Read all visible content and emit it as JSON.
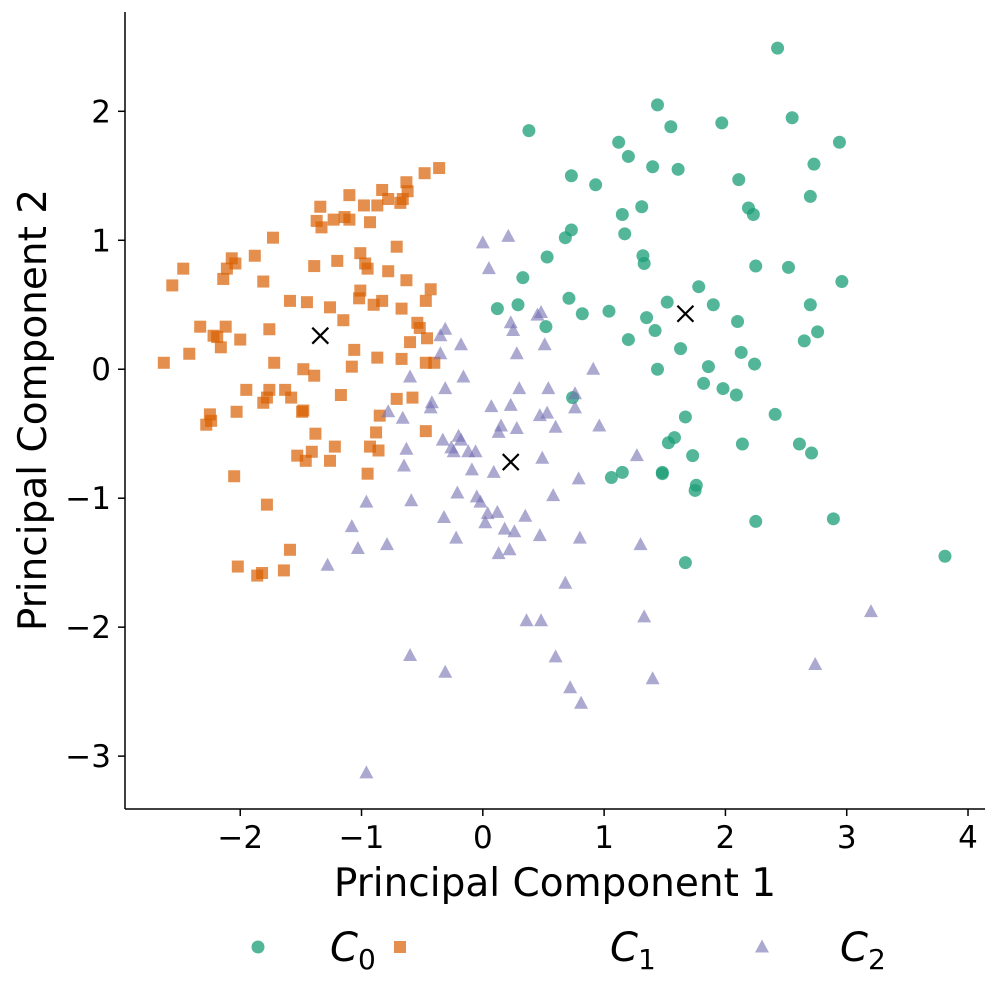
{
  "chart_data": {
    "type": "scatter",
    "title": "",
    "xlabel": "Principal Component 1",
    "ylabel": "Principal Component 2",
    "xlim": [
      -2.95,
      4.14
    ],
    "ylim": [
      -3.41,
      2.77
    ],
    "xticks": [
      -2,
      -1,
      0,
      1,
      2,
      3,
      4
    ],
    "xtick_labels": [
      "−2",
      "−1",
      "0",
      "1",
      "2",
      "3",
      "4"
    ],
    "yticks": [
      -3,
      -2,
      -1,
      0,
      1,
      2
    ],
    "ytick_labels": [
      "−3",
      "−2",
      "−1",
      "0",
      "1",
      "2"
    ],
    "grid": false,
    "legend_placement": "bottom",
    "series": [
      {
        "name": "C",
        "sub": "0",
        "marker": "circle",
        "color": "#1b9e77",
        "points": [
          [
            2.43,
            2.49
          ],
          [
            1.44,
            2.05
          ],
          [
            1.97,
            1.91
          ],
          [
            0.38,
            1.85
          ],
          [
            1.55,
            1.88
          ],
          [
            2.55,
            1.95
          ],
          [
            2.94,
            1.76
          ],
          [
            1.12,
            1.76
          ],
          [
            1.2,
            1.65
          ],
          [
            1.4,
            1.57
          ],
          [
            1.61,
            1.55
          ],
          [
            2.73,
            1.59
          ],
          [
            0.93,
            1.43
          ],
          [
            2.11,
            1.47
          ],
          [
            0.73,
            1.5
          ],
          [
            1.15,
            1.2
          ],
          [
            1.31,
            1.26
          ],
          [
            2.19,
            1.25
          ],
          [
            2.23,
            1.2
          ],
          [
            2.7,
            1.34
          ],
          [
            1.17,
            1.05
          ],
          [
            0.68,
            1.02
          ],
          [
            0.73,
            1.08
          ],
          [
            1.32,
            0.88
          ],
          [
            1.33,
            0.82
          ],
          [
            0.33,
            0.71
          ],
          [
            0.53,
            0.87
          ],
          [
            2.25,
            0.8
          ],
          [
            2.52,
            0.79
          ],
          [
            2.96,
            0.68
          ],
          [
            1.78,
            0.64
          ],
          [
            0.29,
            0.5
          ],
          [
            0.12,
            0.47
          ],
          [
            0.71,
            0.55
          ],
          [
            0.82,
            0.43
          ],
          [
            1.04,
            0.45
          ],
          [
            1.52,
            0.52
          ],
          [
            1.35,
            0.4
          ],
          [
            1.42,
            0.3
          ],
          [
            1.9,
            0.5
          ],
          [
            2.7,
            0.5
          ],
          [
            2.76,
            0.29
          ],
          [
            0.52,
            0.33
          ],
          [
            1.2,
            0.23
          ],
          [
            2.1,
            0.37
          ],
          [
            2.65,
            0.22
          ],
          [
            1.63,
            0.16
          ],
          [
            2.13,
            0.13
          ],
          [
            1.86,
            0.02
          ],
          [
            1.44,
            0.0
          ],
          [
            2.24,
            0.04
          ],
          [
            1.82,
            -0.11
          ],
          [
            1.98,
            -0.15
          ],
          [
            0.74,
            -0.22
          ],
          [
            2.09,
            -0.2
          ],
          [
            2.41,
            -0.35
          ],
          [
            1.53,
            -0.57
          ],
          [
            1.58,
            -0.53
          ],
          [
            2.61,
            -0.58
          ],
          [
            2.14,
            -0.58
          ],
          [
            1.67,
            -0.37
          ],
          [
            1.48,
            -0.8
          ],
          [
            1.48,
            -0.81
          ],
          [
            1.06,
            -0.84
          ],
          [
            1.15,
            -0.8
          ],
          [
            1.73,
            -0.67
          ],
          [
            2.71,
            -0.65
          ],
          [
            1.76,
            -0.9
          ],
          [
            1.75,
            -0.94
          ],
          [
            2.25,
            -1.18
          ],
          [
            2.89,
            -1.16
          ],
          [
            3.81,
            -1.45
          ],
          [
            1.67,
            -1.5
          ]
        ]
      },
      {
        "name": "C",
        "sub": "1",
        "marker": "square",
        "color": "#d95f02",
        "points": [
          [
            -0.36,
            1.56
          ],
          [
            -0.48,
            1.52
          ],
          [
            -0.63,
            1.45
          ],
          [
            -0.62,
            1.38
          ],
          [
            -0.83,
            1.39
          ],
          [
            -0.78,
            1.32
          ],
          [
            -0.87,
            1.27
          ],
          [
            -0.68,
            1.29
          ],
          [
            -0.66,
            1.32
          ],
          [
            -0.98,
            1.27
          ],
          [
            -1.1,
            1.35
          ],
          [
            -1.34,
            1.26
          ],
          [
            -1.23,
            1.16
          ],
          [
            -1.37,
            1.15
          ],
          [
            -1.14,
            1.18
          ],
          [
            -1.1,
            1.16
          ],
          [
            -1.33,
            1.1
          ],
          [
            -1.73,
            1.02
          ],
          [
            -0.93,
            1.14
          ],
          [
            -0.71,
            0.95
          ],
          [
            -1.01,
            0.9
          ],
          [
            -1.2,
            0.84
          ],
          [
            -2.07,
            0.86
          ],
          [
            -2.04,
            0.82
          ],
          [
            -2.11,
            0.78
          ],
          [
            -1.88,
            0.88
          ],
          [
            -2.47,
            0.78
          ],
          [
            -2.56,
            0.65
          ],
          [
            -1.81,
            0.68
          ],
          [
            -2.14,
            0.7
          ],
          [
            -1.39,
            0.8
          ],
          [
            -0.97,
            0.82
          ],
          [
            -0.95,
            0.78
          ],
          [
            -1.01,
            0.61
          ],
          [
            -0.78,
            0.76
          ],
          [
            -0.63,
            0.69
          ],
          [
            -0.43,
            0.62
          ],
          [
            -1.59,
            0.53
          ],
          [
            -1.45,
            0.52
          ],
          [
            -1.26,
            0.48
          ],
          [
            -1.02,
            0.55
          ],
          [
            -0.9,
            0.5
          ],
          [
            -0.83,
            0.53
          ],
          [
            -0.67,
            0.47
          ],
          [
            -0.47,
            0.53
          ],
          [
            -1.15,
            0.38
          ],
          [
            -0.54,
            0.36
          ],
          [
            -0.52,
            0.32
          ],
          [
            -2.33,
            0.33
          ],
          [
            -2.12,
            0.33
          ],
          [
            -2.22,
            0.26
          ],
          [
            -2.0,
            0.23
          ],
          [
            -1.76,
            0.31
          ],
          [
            -0.6,
            0.21
          ],
          [
            -0.46,
            0.24
          ],
          [
            -1.06,
            0.15
          ],
          [
            -0.47,
            0.05
          ],
          [
            -2.63,
            0.05
          ],
          [
            -2.42,
            0.12
          ],
          [
            -2.16,
            0.17
          ],
          [
            -2.19,
            0.25
          ],
          [
            -1.72,
            0.05
          ],
          [
            -1.48,
            0.0
          ],
          [
            -1.39,
            -0.05
          ],
          [
            -0.87,
            0.09
          ],
          [
            -0.67,
            0.08
          ],
          [
            -0.4,
            0.05
          ],
          [
            -1.08,
            0.02
          ],
          [
            -1.95,
            -0.16
          ],
          [
            -1.76,
            -0.16
          ],
          [
            -1.63,
            -0.16
          ],
          [
            -1.58,
            -0.22
          ],
          [
            -1.78,
            -0.22
          ],
          [
            -0.71,
            -0.23
          ],
          [
            -0.58,
            -0.22
          ],
          [
            -1.81,
            -0.26
          ],
          [
            -1.17,
            -0.2
          ],
          [
            -1.48,
            -0.32
          ],
          [
            -2.25,
            -0.35
          ],
          [
            -2.24,
            -0.4
          ],
          [
            -2.28,
            -0.43
          ],
          [
            -2.03,
            -0.33
          ],
          [
            -1.49,
            -0.33
          ],
          [
            -1.38,
            -0.5
          ],
          [
            -0.88,
            -0.49
          ],
          [
            -0.47,
            -0.48
          ],
          [
            -1.22,
            -0.6
          ],
          [
            -1.41,
            -0.64
          ],
          [
            -1.26,
            -0.71
          ],
          [
            -1.53,
            -0.67
          ],
          [
            -2.05,
            -0.83
          ],
          [
            -1.78,
            -1.05
          ],
          [
            -2.02,
            -1.53
          ],
          [
            -1.86,
            -1.6
          ],
          [
            -1.82,
            -1.58
          ],
          [
            -0.95,
            -0.81
          ],
          [
            -0.86,
            -0.63
          ],
          [
            -0.93,
            -0.6
          ],
          [
            -1.59,
            -1.4
          ],
          [
            -1.64,
            -1.56
          ],
          [
            -0.85,
            -0.36
          ],
          [
            -1.46,
            -0.71
          ]
        ]
      },
      {
        "name": "C",
        "sub": "2",
        "marker": "triangle",
        "color": "#7570b3",
        "points": [
          [
            0.0,
            0.98
          ],
          [
            0.21,
            1.03
          ],
          [
            0.05,
            0.78
          ],
          [
            -0.31,
            0.31
          ],
          [
            -0.35,
            0.26
          ],
          [
            0.23,
            0.36
          ],
          [
            0.25,
            0.3
          ],
          [
            0.28,
            0.12
          ],
          [
            -0.18,
            0.19
          ],
          [
            -0.35,
            0.12
          ],
          [
            -0.6,
            -0.06
          ],
          [
            -0.16,
            -0.06
          ],
          [
            -0.31,
            -0.15
          ],
          [
            0.48,
            0.44
          ],
          [
            0.45,
            0.42
          ],
          [
            0.51,
            0.19
          ],
          [
            0.91,
            0.0
          ],
          [
            0.3,
            -0.15
          ],
          [
            0.54,
            -0.15
          ],
          [
            0.76,
            -0.19
          ],
          [
            0.76,
            -0.3
          ],
          [
            0.07,
            -0.29
          ],
          [
            0.23,
            -0.28
          ],
          [
            0.53,
            -0.34
          ],
          [
            0.47,
            -0.36
          ],
          [
            -0.42,
            -0.26
          ],
          [
            -0.43,
            -0.3
          ],
          [
            -0.66,
            -0.38
          ],
          [
            -0.78,
            -0.33
          ],
          [
            -0.2,
            -0.52
          ],
          [
            -0.18,
            -0.55
          ],
          [
            0.13,
            -0.49
          ],
          [
            0.28,
            -0.46
          ],
          [
            0.6,
            -0.45
          ],
          [
            0.96,
            -0.44
          ],
          [
            1.27,
            -0.67
          ],
          [
            -0.26,
            -0.61
          ],
          [
            -0.12,
            -0.64
          ],
          [
            -0.06,
            -0.64
          ],
          [
            0.09,
            -0.8
          ],
          [
            -0.24,
            -0.64
          ],
          [
            -0.09,
            -0.78
          ],
          [
            0.49,
            -0.69
          ],
          [
            -0.63,
            -0.62
          ],
          [
            -0.21,
            -0.96
          ],
          [
            -0.05,
            -0.99
          ],
          [
            -0.02,
            -1.03
          ],
          [
            0.04,
            -1.12
          ],
          [
            0.12,
            -1.11
          ],
          [
            0.35,
            -1.14
          ],
          [
            0.58,
            -0.98
          ],
          [
            0.79,
            -0.85
          ],
          [
            -0.96,
            -1.03
          ],
          [
            -0.59,
            -1.02
          ],
          [
            -0.32,
            -1.15
          ],
          [
            0.02,
            -1.19
          ],
          [
            0.18,
            -1.24
          ],
          [
            0.22,
            -1.4
          ],
          [
            0.26,
            -1.26
          ],
          [
            -0.22,
            -1.31
          ],
          [
            -1.08,
            -1.22
          ],
          [
            -1.03,
            -1.39
          ],
          [
            -0.79,
            -1.36
          ],
          [
            -1.28,
            -1.52
          ],
          [
            0.13,
            -1.43
          ],
          [
            0.47,
            -1.29
          ],
          [
            0.8,
            -1.31
          ],
          [
            1.3,
            -1.36
          ],
          [
            0.68,
            -1.66
          ],
          [
            0.36,
            -1.95
          ],
          [
            0.48,
            -1.95
          ],
          [
            1.33,
            -1.92
          ],
          [
            3.2,
            -1.88
          ],
          [
            -0.6,
            -2.22
          ],
          [
            -0.31,
            -2.35
          ],
          [
            0.6,
            -2.23
          ],
          [
            0.72,
            -2.47
          ],
          [
            0.81,
            -2.59
          ],
          [
            1.4,
            -2.4
          ],
          [
            2.74,
            -2.29
          ],
          [
            -0.96,
            -3.13
          ],
          [
            -0.65,
            -0.75
          ],
          [
            -0.33,
            -0.55
          ],
          [
            0.15,
            -0.44
          ]
        ]
      }
    ],
    "centroids": [
      [
        -1.34,
        0.26
      ],
      [
        0.23,
        -0.72
      ],
      [
        1.67,
        0.43
      ]
    ],
    "centroid_marker": "x",
    "centroid_color": "#000000"
  }
}
